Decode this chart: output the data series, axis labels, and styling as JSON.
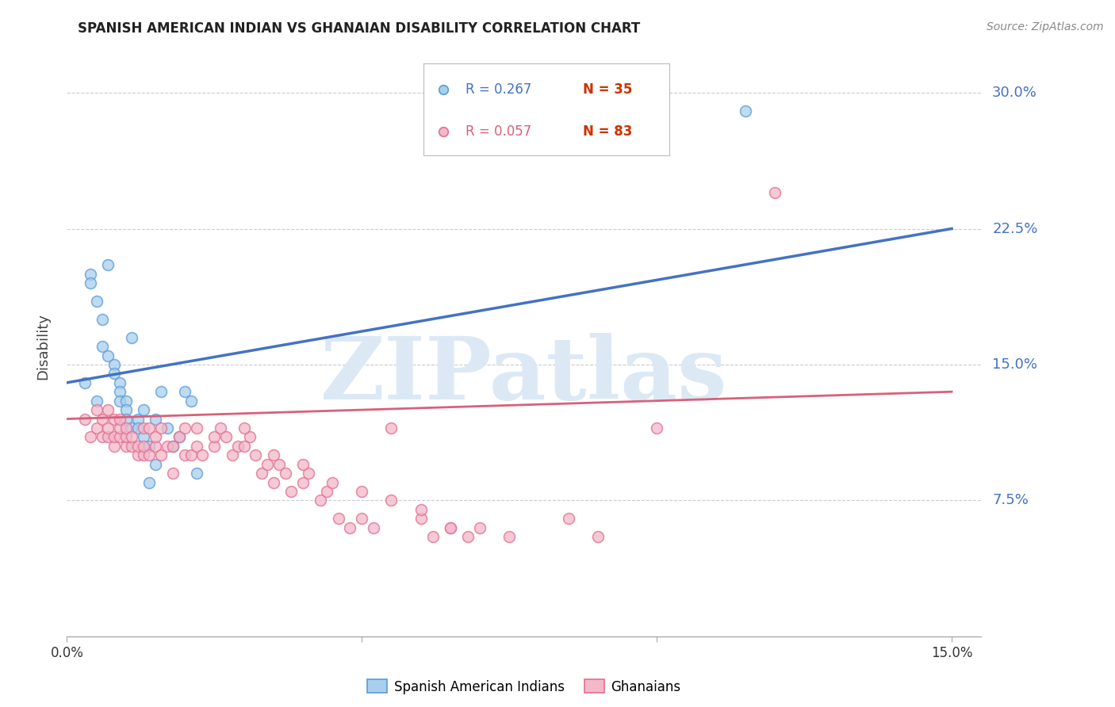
{
  "title": "SPANISH AMERICAN INDIAN VS GHANAIAN DISABILITY CORRELATION CHART",
  "source": "Source: ZipAtlas.com",
  "ylabel": "Disability",
  "ytick_labels": [
    "30.0%",
    "22.5%",
    "15.0%",
    "7.5%"
  ],
  "ytick_values": [
    0.3,
    0.225,
    0.15,
    0.075
  ],
  "xtick_values": [
    0.0,
    0.05,
    0.1,
    0.15
  ],
  "xtick_labels": [
    "0.0%",
    "",
    "",
    "15.0%"
  ],
  "xlim": [
    0.0,
    0.155
  ],
  "ylim": [
    0.0,
    0.32
  ],
  "blue_r": "R = 0.267",
  "blue_n": "N = 35",
  "pink_r": "R = 0.057",
  "pink_n": "N = 83",
  "blue_fill_color": "#a8d0ee",
  "blue_edge_color": "#5b9bd5",
  "pink_fill_color": "#f4b8ca",
  "pink_edge_color": "#e07090",
  "blue_line_color": "#4472c4",
  "pink_line_color": "#d9607a",
  "axis_label_color": "#4472c4",
  "watermark_color": "#dce9f5",
  "background_color": "#ffffff",
  "blue_scatter_x": [
    0.003,
    0.004,
    0.004,
    0.005,
    0.005,
    0.006,
    0.006,
    0.007,
    0.007,
    0.008,
    0.008,
    0.009,
    0.009,
    0.009,
    0.01,
    0.01,
    0.01,
    0.011,
    0.011,
    0.012,
    0.012,
    0.013,
    0.013,
    0.014,
    0.014,
    0.015,
    0.015,
    0.016,
    0.017,
    0.018,
    0.019,
    0.02,
    0.021,
    0.022,
    0.115
  ],
  "blue_scatter_y": [
    0.14,
    0.2,
    0.195,
    0.185,
    0.13,
    0.16,
    0.175,
    0.155,
    0.205,
    0.15,
    0.145,
    0.14,
    0.135,
    0.13,
    0.13,
    0.125,
    0.12,
    0.115,
    0.165,
    0.12,
    0.115,
    0.11,
    0.125,
    0.105,
    0.085,
    0.12,
    0.095,
    0.135,
    0.115,
    0.105,
    0.11,
    0.135,
    0.13,
    0.09,
    0.29
  ],
  "pink_scatter_x": [
    0.003,
    0.004,
    0.005,
    0.005,
    0.006,
    0.006,
    0.007,
    0.007,
    0.007,
    0.008,
    0.008,
    0.008,
    0.009,
    0.009,
    0.009,
    0.01,
    0.01,
    0.01,
    0.011,
    0.011,
    0.012,
    0.012,
    0.013,
    0.013,
    0.013,
    0.014,
    0.014,
    0.015,
    0.015,
    0.016,
    0.016,
    0.017,
    0.018,
    0.018,
    0.019,
    0.02,
    0.02,
    0.021,
    0.022,
    0.022,
    0.023,
    0.025,
    0.025,
    0.026,
    0.027,
    0.028,
    0.029,
    0.03,
    0.031,
    0.032,
    0.033,
    0.034,
    0.035,
    0.036,
    0.037,
    0.038,
    0.04,
    0.041,
    0.043,
    0.044,
    0.046,
    0.048,
    0.05,
    0.052,
    0.055,
    0.06,
    0.062,
    0.065,
    0.068,
    0.07,
    0.03,
    0.035,
    0.04,
    0.045,
    0.05,
    0.055,
    0.06,
    0.065,
    0.075,
    0.085,
    0.09,
    0.1,
    0.12
  ],
  "pink_scatter_y": [
    0.12,
    0.11,
    0.115,
    0.125,
    0.11,
    0.12,
    0.11,
    0.115,
    0.125,
    0.12,
    0.105,
    0.11,
    0.11,
    0.115,
    0.12,
    0.105,
    0.11,
    0.115,
    0.105,
    0.11,
    0.1,
    0.105,
    0.115,
    0.1,
    0.105,
    0.1,
    0.115,
    0.105,
    0.11,
    0.1,
    0.115,
    0.105,
    0.09,
    0.105,
    0.11,
    0.1,
    0.115,
    0.1,
    0.105,
    0.115,
    0.1,
    0.105,
    0.11,
    0.115,
    0.11,
    0.1,
    0.105,
    0.105,
    0.11,
    0.1,
    0.09,
    0.095,
    0.085,
    0.095,
    0.09,
    0.08,
    0.085,
    0.09,
    0.075,
    0.08,
    0.065,
    0.06,
    0.065,
    0.06,
    0.075,
    0.065,
    0.055,
    0.06,
    0.055,
    0.06,
    0.115,
    0.1,
    0.095,
    0.085,
    0.08,
    0.115,
    0.07,
    0.06,
    0.055,
    0.065,
    0.055,
    0.115,
    0.245
  ]
}
